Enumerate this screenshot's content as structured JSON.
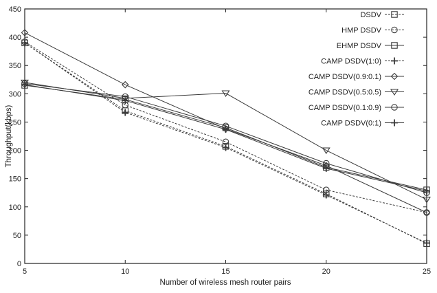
{
  "chart_data": {
    "type": "line",
    "title": "",
    "xlabel": "Number of wireless mesh router pairs",
    "ylabel": "Throughput(kbps)",
    "x": [
      5,
      10,
      15,
      20,
      25
    ],
    "xlim": [
      5,
      25
    ],
    "ylim": [
      0,
      450
    ],
    "xticks": [
      5,
      10,
      15,
      20,
      25
    ],
    "yticks": [
      0,
      50,
      100,
      150,
      200,
      250,
      300,
      350,
      400,
      450
    ],
    "grid": false,
    "legend_position": "top-right",
    "series": [
      {
        "name": "DSDV",
        "marker": "square",
        "dash": "dashed",
        "values": [
          390,
          270,
          207,
          123,
          35
        ]
      },
      {
        "name": "HMP DSDV",
        "marker": "circle",
        "dash": "dashed",
        "values": [
          392,
          280,
          215,
          130,
          90
        ]
      },
      {
        "name": "EHMP DSDV",
        "marker": "square",
        "dash": "solid",
        "values": [
          315,
          290,
          240,
          170,
          130
        ]
      },
      {
        "name": "CAMP DSDV(1:0)",
        "marker": "plus",
        "dash": "dashed",
        "values": [
          390,
          267,
          205,
          121,
          36
        ]
      },
      {
        "name": "CAMP DSDV(0.9:0.1)",
        "marker": "diamond",
        "dash": "solid",
        "values": [
          408,
          316,
          238,
          173,
          90
        ]
      },
      {
        "name": "CAMP DSDV(0.5:0.5)",
        "marker": "triangle-down",
        "dash": "solid",
        "values": [
          320,
          292,
          301,
          200,
          113
        ]
      },
      {
        "name": "CAMP DSDV(0.1:0.9)",
        "marker": "circle",
        "dash": "solid",
        "values": [
          318,
          295,
          243,
          177,
          125
        ]
      },
      {
        "name": "CAMP DSDV(0:1)",
        "marker": "plus",
        "dash": "solid",
        "values": [
          316,
          288,
          237,
          168,
          128
        ]
      }
    ]
  }
}
